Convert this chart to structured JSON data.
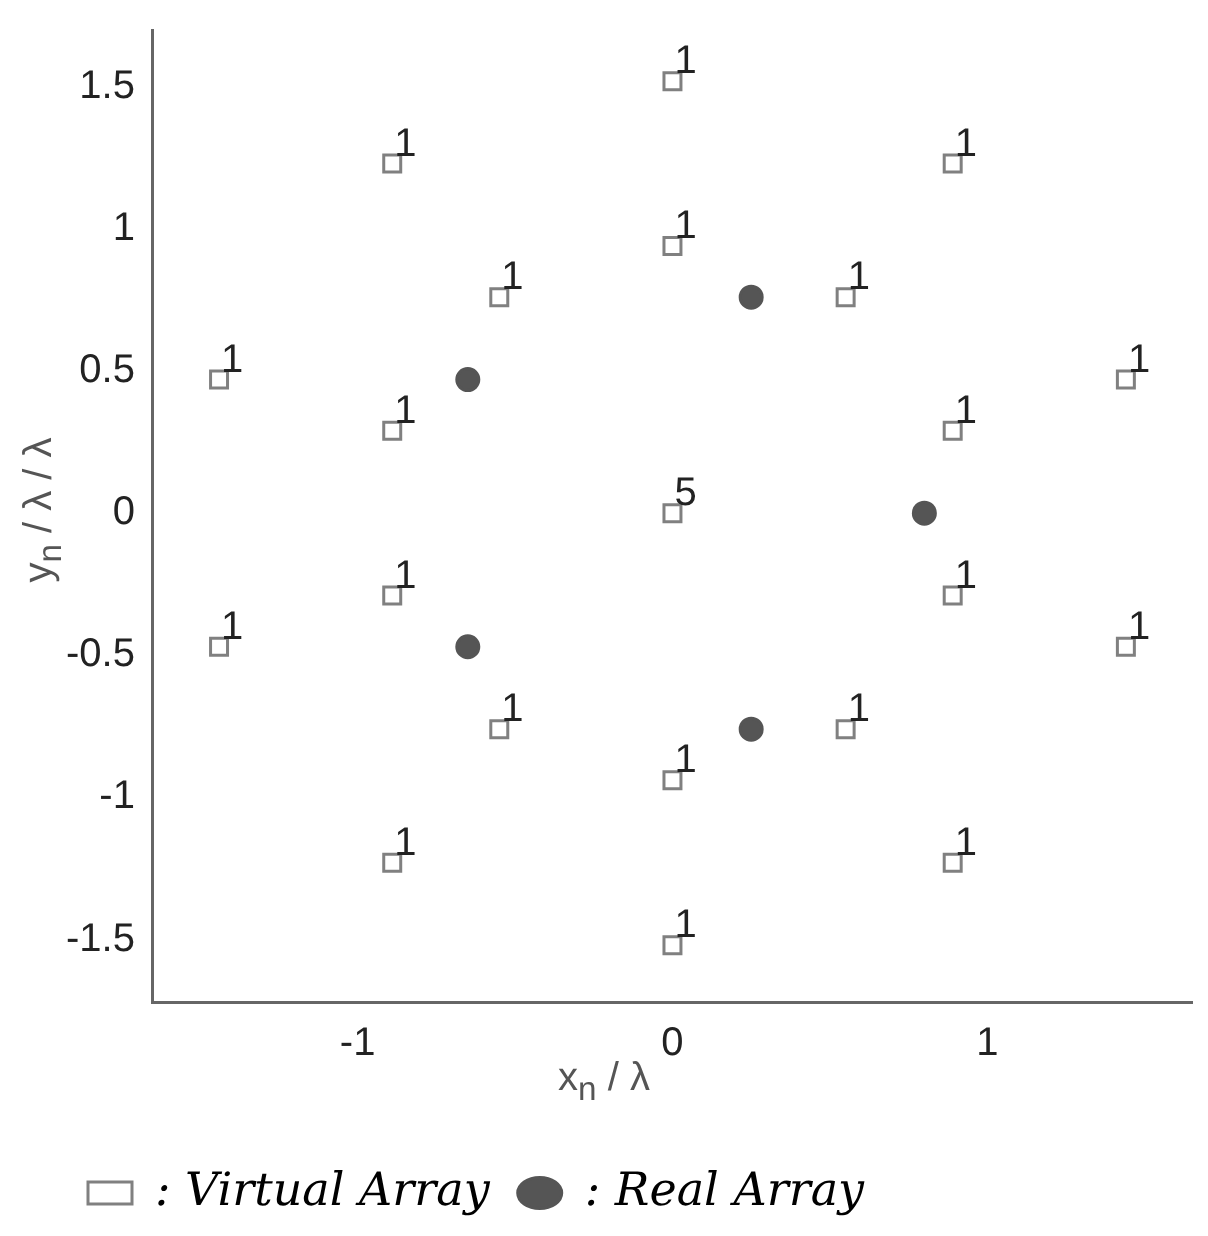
{
  "chart_data": {
    "type": "scatter",
    "xlabel": "x$_{n}$ / λ",
    "ylabel": "y$_{n}$ / λ / λ",
    "xlim": [
      -1.65,
      1.65
    ],
    "ylim": [
      -1.72,
      1.7
    ],
    "xticks": [
      -1,
      0,
      1
    ],
    "yticks": [
      -1.5,
      -1,
      -0.5,
      0,
      0.5,
      1,
      1.5
    ],
    "grid": false,
    "legend": "bottom",
    "series": [
      {
        "name": ": Virtual Array",
        "color": "#808080",
        "marker": "square",
        "x": [
          0,
          0,
          0,
          0,
          0,
          -0.89,
          0.89,
          -0.89,
          0.89,
          -0.55,
          0.55,
          -0.55,
          0.55,
          -0.89,
          0.89,
          -0.89,
          0.89,
          -1.44,
          1.44,
          -1.44,
          1.44
        ],
        "values": [
          1.52,
          0.94,
          0,
          -0.94,
          -1.52,
          1.23,
          1.23,
          -1.23,
          -1.23,
          0.76,
          0.76,
          -0.76,
          -0.76,
          0.29,
          0.29,
          -0.29,
          -0.29,
          0.47,
          0.47,
          -0.47,
          -0.47
        ]
      },
      {
        "name": ": Real Array",
        "color": "#555555",
        "marker": "circle",
        "x": [
          0.25,
          0.25,
          -0.65,
          -0.65,
          0.8
        ],
        "values": [
          0.76,
          -0.76,
          0.47,
          -0.47,
          0
        ]
      }
    ],
    "annotations": [
      {
        "text": "1",
        "x": 0,
        "y": 1.52
      },
      {
        "text": "1",
        "x": 0,
        "y": 0.94
      },
      {
        "text": "5",
        "x": 0,
        "y": 0
      },
      {
        "text": "1",
        "x": 0,
        "y": -0.94
      },
      {
        "text": "1",
        "x": 0,
        "y": -1.52
      },
      {
        "text": "1",
        "x": -0.89,
        "y": 1.23
      },
      {
        "text": "1",
        "x": 0.89,
        "y": 1.23
      },
      {
        "text": "1",
        "x": -0.89,
        "y": -1.23
      },
      {
        "text": "1",
        "x": 0.89,
        "y": -1.23
      },
      {
        "text": "1",
        "x": -0.55,
        "y": 0.76
      },
      {
        "text": "1",
        "x": 0.55,
        "y": 0.76
      },
      {
        "text": "1",
        "x": -0.55,
        "y": -0.76
      },
      {
        "text": "1",
        "x": 0.55,
        "y": -0.76
      },
      {
        "text": "1",
        "x": -0.89,
        "y": 0.29
      },
      {
        "text": "1",
        "x": 0.89,
        "y": 0.29
      },
      {
        "text": "1",
        "x": -0.89,
        "y": -0.29
      },
      {
        "text": "1",
        "x": 0.89,
        "y": -0.29
      },
      {
        "text": "1",
        "x": -1.44,
        "y": 0.47
      },
      {
        "text": "1",
        "x": 1.44,
        "y": 0.47
      },
      {
        "text": "1",
        "x": -1.44,
        "y": -0.47
      },
      {
        "text": "1",
        "x": 1.44,
        "y": -0.47
      }
    ]
  }
}
